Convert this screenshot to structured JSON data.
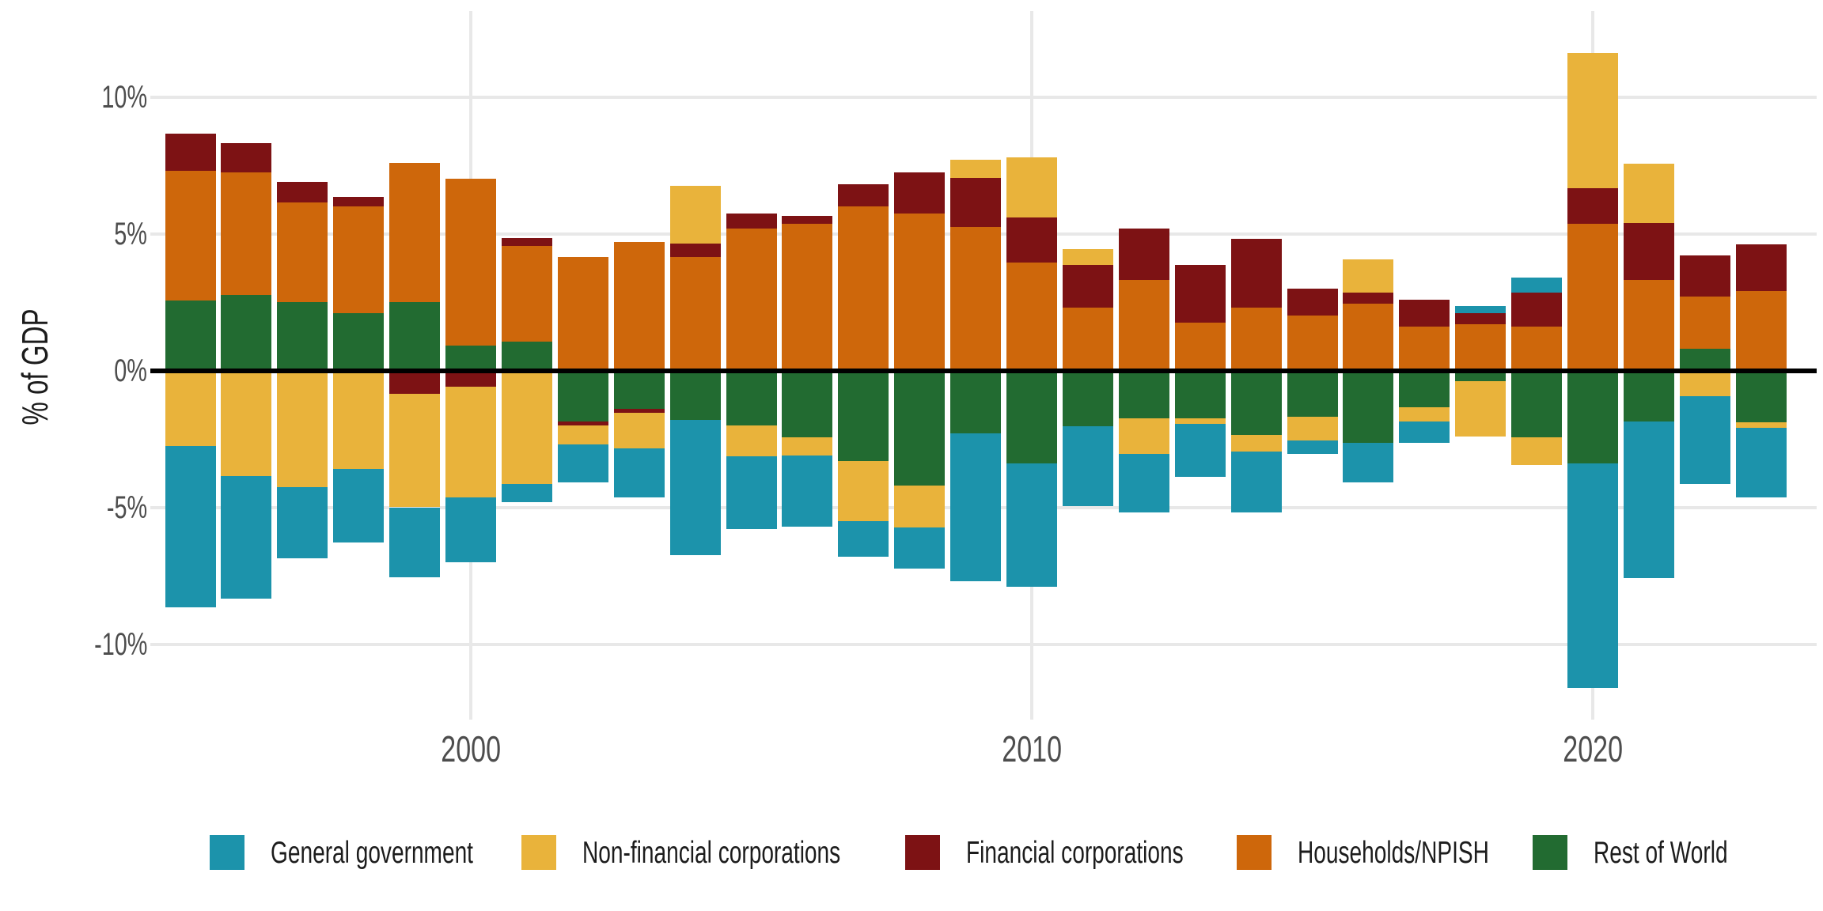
{
  "y_axis": {
    "title": "% of GDP"
  },
  "chart_data": {
    "type": "bar",
    "stacked": true,
    "title": "",
    "xlabel": "",
    "ylabel": "% of GDP",
    "units": "percent of GDP",
    "grid": true,
    "legend_position": "bottom",
    "ylim": [
      -13,
      13
    ],
    "categories": [
      1995,
      1996,
      1997,
      1998,
      1999,
      2000,
      2001,
      2002,
      2003,
      2004,
      2005,
      2006,
      2007,
      2008,
      2009,
      2010,
      2011,
      2012,
      2013,
      2014,
      2015,
      2016,
      2017,
      2018,
      2019,
      2020,
      2021,
      2022,
      2023
    ],
    "series": [
      {
        "name": "General government",
        "key": "gov",
        "color": "#1c93ab",
        "values": [
          -5.9,
          -4.5,
          -2.6,
          -2.7,
          -2.55,
          -2.35,
          -0.65,
          -1.4,
          -1.8,
          -4.95,
          -2.65,
          -2.6,
          -1.3,
          -1.5,
          -5.4,
          -4.5,
          -2.9,
          -2.15,
          -1.95,
          -2.25,
          -0.5,
          -1.45,
          -0.8,
          0.25,
          0.55,
          -8.2,
          -5.75,
          -3.2,
          -2.55
        ]
      },
      {
        "name": "Non-financial corporations",
        "key": "nfc",
        "color": "#e9b33b",
        "values": [
          -2.75,
          -3.85,
          -4.25,
          -3.6,
          -4.15,
          -4.05,
          -4.15,
          -0.7,
          -1.3,
          2.1,
          -1.15,
          -0.65,
          -2.2,
          -1.55,
          0.65,
          2.2,
          0.6,
          -1.3,
          -0.2,
          -0.6,
          -0.85,
          1.2,
          -0.5,
          -2.0,
          -1.0,
          4.95,
          2.15,
          -0.95,
          -0.2
        ]
      },
      {
        "name": "Financial corporations",
        "key": "fc",
        "color": "#7d1214",
        "values": [
          1.35,
          1.05,
          0.75,
          0.35,
          -0.85,
          -0.6,
          0.3,
          -0.15,
          -0.15,
          0.5,
          0.55,
          0.3,
          0.8,
          1.5,
          1.8,
          1.65,
          1.55,
          1.9,
          2.1,
          2.5,
          1.0,
          0.4,
          1.0,
          0.4,
          1.25,
          1.3,
          2.1,
          1.5,
          1.7
        ]
      },
      {
        "name": "Households/NPISH",
        "key": "hh",
        "color": "#ce670b",
        "values": [
          4.75,
          4.5,
          3.65,
          3.9,
          5.1,
          6.1,
          3.5,
          4.15,
          4.7,
          4.15,
          5.2,
          5.35,
          6.0,
          5.75,
          5.25,
          3.95,
          2.3,
          3.3,
          1.75,
          2.3,
          2.0,
          2.45,
          1.6,
          1.7,
          1.6,
          5.35,
          3.3,
          1.9,
          2.9
        ]
      },
      {
        "name": "Rest of World",
        "key": "row",
        "color": "#226b31",
        "values": [
          2.55,
          2.75,
          2.5,
          2.1,
          2.5,
          0.9,
          1.05,
          -1.85,
          -1.4,
          -1.8,
          -2.0,
          -2.45,
          -3.3,
          -4.2,
          -2.3,
          -3.4,
          -2.05,
          -1.75,
          -1.75,
          -2.35,
          -1.7,
          -2.65,
          -1.35,
          -0.4,
          -2.45,
          -3.4,
          -1.85,
          0.8,
          -1.9
        ]
      }
    ],
    "stack_order_from_zero": [
      "row",
      "hh",
      "fc",
      "nfc",
      "gov"
    ],
    "y_ticks": [
      {
        "label": "10%",
        "value": 10
      },
      {
        "label": "5%",
        "value": 5
      },
      {
        "label": "0%",
        "value": 0
      },
      {
        "label": "-5%",
        "value": -5
      },
      {
        "label": "-10%",
        "value": -10
      }
    ],
    "x_ticks": [
      {
        "label": "2000",
        "year": 2000
      },
      {
        "label": "2010",
        "year": 2010
      },
      {
        "label": "2020",
        "year": 2020
      }
    ]
  },
  "colors": {
    "gridline": "#e8e8e8",
    "zero_line": "#000000",
    "tick_text": "#4d4d4d",
    "label_text": "#1c1c1c",
    "background": "#ffffff"
  }
}
